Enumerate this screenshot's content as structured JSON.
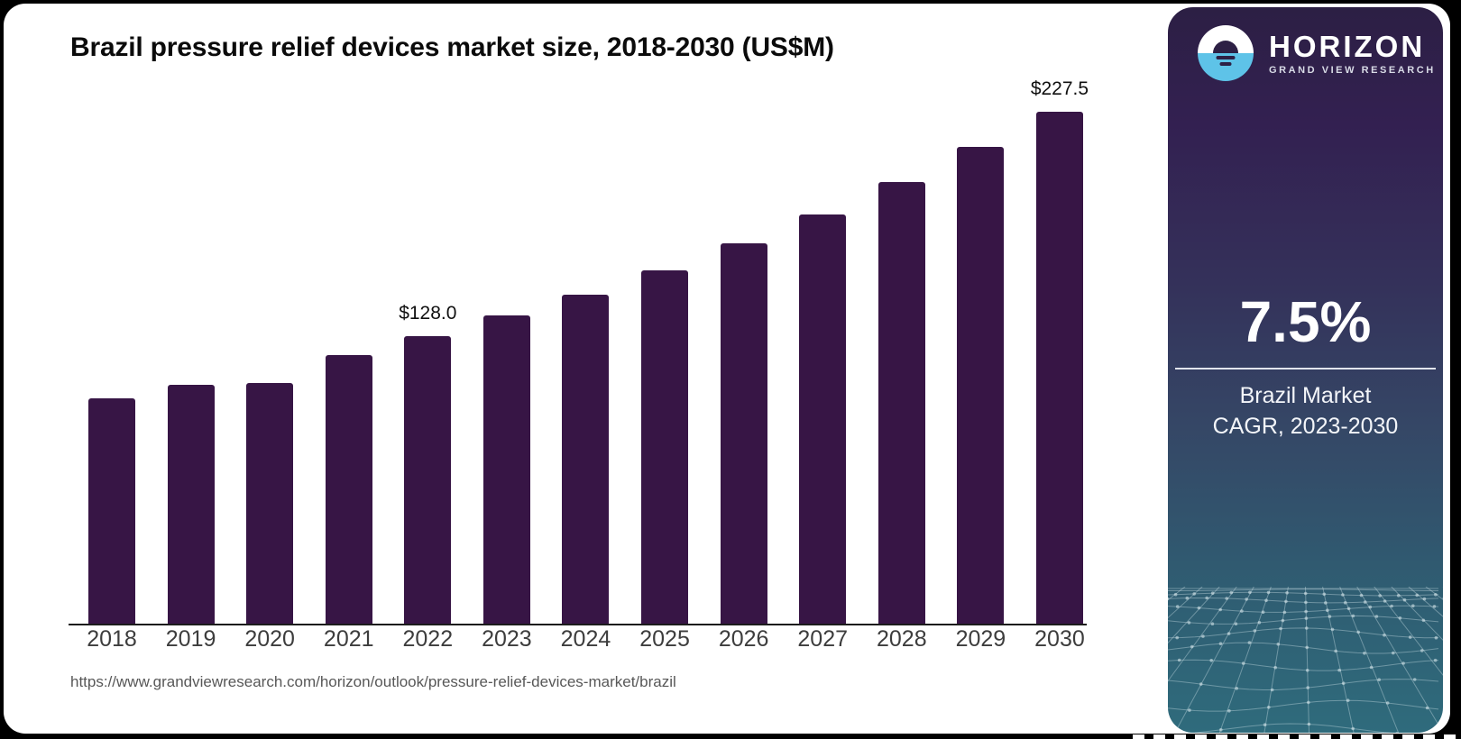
{
  "chart": {
    "title": "Brazil pressure relief devices market size, 2018-2030 (US$M)",
    "source_url": "https://www.grandviewresearch.com/horizon/outlook/pressure-relief-devices-market/brazil"
  },
  "chart_data": {
    "type": "bar",
    "title": "Brazil pressure relief devices market size, 2018-2030 (US$M)",
    "xlabel": "",
    "ylabel": "",
    "categories": [
      "2018",
      "2019",
      "2020",
      "2021",
      "2022",
      "2023",
      "2024",
      "2025",
      "2026",
      "2027",
      "2028",
      "2029",
      "2030"
    ],
    "values": [
      100.4,
      106.3,
      107.2,
      119.6,
      128.0,
      137.1,
      146.2,
      157.2,
      168.9,
      181.9,
      196.1,
      212.0,
      227.5
    ],
    "point_labels": {
      "2022": "$128.0",
      "2030": "$227.5"
    },
    "ylim": [
      0,
      240
    ],
    "grid": false,
    "legend": false,
    "bar_color": "#371545",
    "axis_color": "#1c1c1c",
    "tick_label_color": "#3d3d3d",
    "value_label_color": "#101010"
  },
  "sidebar": {
    "logo": {
      "brand": "HORIZON",
      "subbrand": "GRAND VIEW RESEARCH",
      "mark_top_color": "#ffffff",
      "mark_bottom_color": "#5ec3e8",
      "mark_dome_color": "#2d2045"
    },
    "stat_value": "7.5%",
    "stat_label_line1": "Brazil Market",
    "stat_label_line2": "CAGR, 2023-2030",
    "gradient": [
      "#2c1f44 0%",
      "#332051 16%",
      "#34315a 38%",
      "#354766 58%",
      "#2f5d72 80%",
      "#2f6b7c 100%"
    ]
  }
}
